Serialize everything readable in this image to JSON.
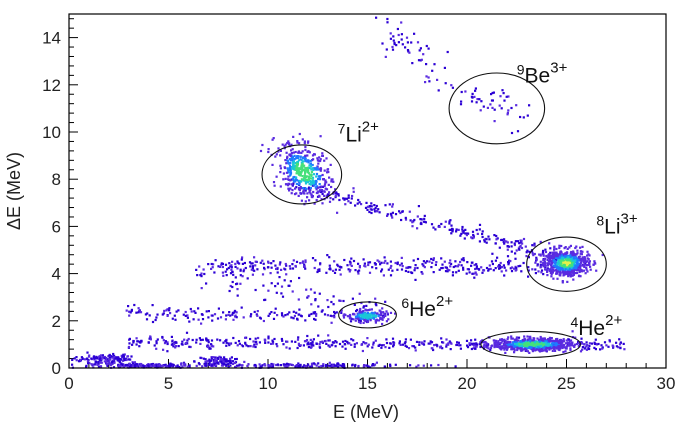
{
  "chart_data": {
    "type": "scatter",
    "xlabel": "E (MeV)",
    "ylabel": "ΔE (MeV)",
    "xlim": [
      0,
      30
    ],
    "ylim": [
      0,
      15
    ],
    "x_ticks": [
      0,
      5,
      10,
      15,
      20,
      25,
      30
    ],
    "y_ticks": [
      0,
      2,
      4,
      6,
      8,
      10,
      12,
      14
    ],
    "grid": false,
    "colormap": [
      "#2b00d4",
      "#5a2be0",
      "#1f7bff",
      "#19c7d6",
      "#45e07a",
      "#e6f04a"
    ],
    "ellipses": [
      {
        "cx": 21.5,
        "cy": 11.0,
        "rx": 2.4,
        "ry": 1.5
      },
      {
        "cx": 11.7,
        "cy": 8.2,
        "rx": 2.0,
        "ry": 1.25
      },
      {
        "cx": 25.0,
        "cy": 4.4,
        "rx": 2.0,
        "ry": 1.15
      },
      {
        "cx": 15.0,
        "cy": 2.25,
        "rx": 1.45,
        "ry": 0.55
      },
      {
        "cx": 23.2,
        "cy": 1.0,
        "rx": 2.5,
        "ry": 0.55
      }
    ],
    "clusters": [
      {
        "cx": 11.8,
        "cy": 8.3,
        "sx": 0.7,
        "sy": 0.55,
        "n": 420,
        "dense": 0.55,
        "tilt": -0.35
      },
      {
        "cx": 25.0,
        "cy": 4.45,
        "sx": 0.55,
        "sy": 0.28,
        "n": 600,
        "dense": 0.9,
        "tilt": 0
      },
      {
        "cx": 15.0,
        "cy": 2.2,
        "sx": 0.5,
        "sy": 0.12,
        "n": 160,
        "dense": 0.45,
        "tilt": 0
      },
      {
        "cx": 23.3,
        "cy": 1.0,
        "sx": 1.05,
        "sy": 0.13,
        "n": 650,
        "dense": 0.7,
        "tilt": 0
      },
      {
        "cx": 21.4,
        "cy": 11.2,
        "sx": 0.8,
        "sy": 0.45,
        "n": 30,
        "dense": 0.05,
        "tilt": -0.3
      },
      {
        "cx": 17.0,
        "cy": 13.6,
        "sx": 0.8,
        "sy": 0.45,
        "n": 45,
        "dense": 0.05,
        "tilt": -0.4
      },
      {
        "cx": 1.8,
        "cy": 0.35,
        "sx": 0.7,
        "sy": 0.1,
        "n": 140,
        "dense": 0.3,
        "tilt": 0
      },
      {
        "cx": 7.5,
        "cy": 0.3,
        "sx": 0.5,
        "sy": 0.1,
        "n": 90,
        "dense": 0.3,
        "tilt": 0
      },
      {
        "cx": 4.0,
        "cy": 0.1,
        "sx": 1.6,
        "sy": 0.05,
        "n": 180,
        "dense": 0.15,
        "tilt": 0
      },
      {
        "cx": 12.0,
        "cy": 0.1,
        "sx": 2.5,
        "sy": 0.05,
        "n": 160,
        "dense": 0.1,
        "tilt": 0
      }
    ],
    "bands": [
      {
        "x0": 11.0,
        "x1": 25.0,
        "y0": 7.8,
        "y1": 4.6,
        "n": 260,
        "jit": 0.15
      },
      {
        "x0": 7.0,
        "x1": 26.0,
        "y0": 4.3,
        "y1": 4.3,
        "n": 380,
        "jit": 0.2
      },
      {
        "x0": 3.0,
        "x1": 15.0,
        "y0": 2.3,
        "y1": 2.2,
        "n": 160,
        "jit": 0.15
      },
      {
        "x0": 3.0,
        "x1": 28.0,
        "y0": 1.1,
        "y1": 0.95,
        "n": 460,
        "jit": 0.12
      },
      {
        "x0": 6.0,
        "x1": 16.0,
        "y0": 4.0,
        "y1": 2.5,
        "n": 80,
        "jit": 0.3
      },
      {
        "x0": 18.0,
        "x1": 23.0,
        "y0": 12.5,
        "y1": 10.5,
        "n": 25,
        "jit": 0.4
      }
    ],
    "annotations": [
      {
        "mass": "9",
        "element": "Be",
        "charge": "3+",
        "x": 22.5,
        "y": 12.1
      },
      {
        "mass": "7",
        "element": "Li",
        "charge": "2+",
        "x": 13.5,
        "y": 9.6
      },
      {
        "mass": "8",
        "element": "Li",
        "charge": "3+",
        "x": 26.5,
        "y": 5.7
      },
      {
        "mass": "6",
        "element": "He",
        "charge": "2+",
        "x": 16.7,
        "y": 2.2
      },
      {
        "mass": "4",
        "element": "He",
        "charge": "2+",
        "x": 25.2,
        "y": 1.4
      }
    ]
  }
}
